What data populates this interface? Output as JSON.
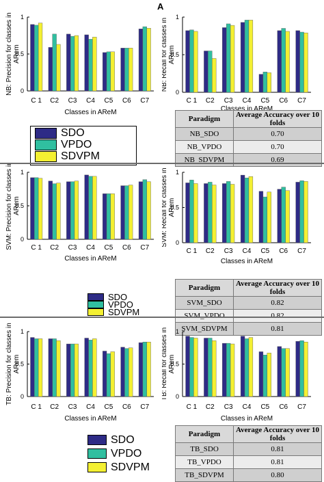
{
  "figure_label": "A",
  "colors": {
    "SDO": "#2e2b86",
    "VPDO": "#30bfa0",
    "SDVPM": "#f4f032"
  },
  "legend": [
    "SDO",
    "VPDO",
    "SDVPM"
  ],
  "panels": [
    {
      "table": {
        "headers": [
          "Paradigm",
          "Average Accuracy over 10 folds"
        ],
        "rows": [
          [
            "NB_SDO",
            "0.70"
          ],
          [
            "NB_VPDO",
            "0.70"
          ],
          [
            "NB_SDVPM",
            "0.69"
          ]
        ]
      }
    },
    {
      "table": {
        "headers": [
          "Paradigm",
          "Average Accuracy over 10 folds"
        ],
        "rows": [
          [
            "SVM_SDO",
            "0.82"
          ],
          [
            "SVM_VPDO",
            "0.82"
          ],
          [
            "SVM_SDVPM",
            "0.81"
          ]
        ]
      }
    },
    {
      "table": {
        "headers": [
          "Paradigm",
          "Average Accuracy over 10 folds"
        ],
        "rows": [
          [
            "TB_SDO",
            "0.81"
          ],
          [
            "TB_VPDO",
            "0.81"
          ],
          [
            "TB_SDVPM",
            "0.80"
          ]
        ]
      }
    }
  ],
  "chart_data": [
    {
      "type": "bar",
      "categories": [
        "C 1",
        "C2",
        "C3",
        "C4",
        "C5",
        "C6",
        "C7"
      ],
      "ylim": [
        0,
        1
      ],
      "yticks": [
        "0",
        "0.5",
        "1"
      ],
      "ylabel": "NB: Precision for classes in ARem",
      "xlabel": "Classes in AReM",
      "series": [
        {
          "name": "SDO",
          "values": [
            0.9,
            0.59,
            0.77,
            0.76,
            0.52,
            0.58,
            0.84
          ]
        },
        {
          "name": "VPDO",
          "values": [
            0.89,
            0.77,
            0.74,
            0.7,
            0.53,
            0.58,
            0.87
          ]
        },
        {
          "name": "SDVPM",
          "values": [
            0.92,
            0.63,
            0.75,
            0.73,
            0.53,
            0.58,
            0.85
          ]
        }
      ]
    },
    {
      "type": "bar",
      "categories": [
        "C 1",
        "C2",
        "C3",
        "C4",
        "C5",
        "C6",
        "C7"
      ],
      "ylim": [
        0,
        1
      ],
      "yticks": [
        "0",
        "0.5",
        "1"
      ],
      "ylabel": "NB: Recall for classes in ARem",
      "xlabel": "Classes in AReM",
      "series": [
        {
          "name": "SDO",
          "values": [
            0.82,
            0.55,
            0.86,
            0.93,
            0.24,
            0.82,
            0.82
          ]
        },
        {
          "name": "VPDO",
          "values": [
            0.83,
            0.55,
            0.91,
            0.96,
            0.27,
            0.85,
            0.8
          ]
        },
        {
          "name": "SDVPM",
          "values": [
            0.81,
            0.45,
            0.89,
            0.96,
            0.26,
            0.81,
            0.79
          ]
        }
      ]
    },
    {
      "type": "bar",
      "categories": [
        "C 1",
        "C2",
        "C3",
        "C4",
        "C5",
        "C6",
        "C7"
      ],
      "ylim": [
        0,
        1
      ],
      "yticks": [
        "0",
        "0.5",
        "1"
      ],
      "ylabel": "SVM: Precision for classes in ARem",
      "xlabel": "Classes in AReM",
      "series": [
        {
          "name": "SDO",
          "values": [
            0.92,
            0.87,
            0.86,
            0.96,
            0.68,
            0.8,
            0.86
          ]
        },
        {
          "name": "VPDO",
          "values": [
            0.92,
            0.83,
            0.86,
            0.94,
            0.68,
            0.8,
            0.89
          ]
        },
        {
          "name": "SDVPM",
          "values": [
            0.91,
            0.84,
            0.87,
            0.94,
            0.68,
            0.81,
            0.86
          ]
        }
      ]
    },
    {
      "type": "bar",
      "categories": [
        "C 1",
        "C2",
        "C3",
        "C4",
        "C5",
        "C6",
        "C7"
      ],
      "ylim": [
        0,
        1
      ],
      "yticks": [
        "0",
        "0.5",
        "1"
      ],
      "ylabel": "SVM: Recall for classes in ARem",
      "xlabel": "Classes in AReM",
      "series": [
        {
          "name": "SDO",
          "values": [
            0.85,
            0.84,
            0.84,
            0.96,
            0.73,
            0.76,
            0.86
          ]
        },
        {
          "name": "VPDO",
          "values": [
            0.89,
            0.86,
            0.87,
            0.92,
            0.65,
            0.79,
            0.88
          ]
        },
        {
          "name": "SDVPM",
          "values": [
            0.84,
            0.82,
            0.83,
            0.94,
            0.72,
            0.74,
            0.87
          ]
        }
      ]
    },
    {
      "type": "bar",
      "categories": [
        "C 1",
        "C2",
        "C3",
        "C4",
        "C5",
        "C6",
        "C7"
      ],
      "ylim": [
        0,
        1
      ],
      "yticks": [
        "0",
        "0.5",
        "1"
      ],
      "ylabel": "TB: Precision for classes in ARem",
      "xlabel": "Classes in AReM",
      "series": [
        {
          "name": "SDO",
          "values": [
            0.91,
            0.89,
            0.81,
            0.9,
            0.7,
            0.76,
            0.83
          ]
        },
        {
          "name": "VPDO",
          "values": [
            0.89,
            0.89,
            0.81,
            0.87,
            0.66,
            0.74,
            0.84
          ]
        },
        {
          "name": "SDVPM",
          "values": [
            0.89,
            0.86,
            0.81,
            0.89,
            0.69,
            0.75,
            0.84
          ]
        }
      ]
    },
    {
      "type": "bar",
      "categories": [
        "C 1",
        "C2",
        "C3",
        "C4",
        "C5",
        "C6",
        "C7"
      ],
      "ylim": [
        0,
        1
      ],
      "yticks": [
        "0",
        "0.5",
        "1"
      ],
      "ylabel": "TB: Recall for classes in ARem",
      "xlabel": "Classes in AReM",
      "series": [
        {
          "name": "SDO",
          "values": [
            0.93,
            0.9,
            0.82,
            0.93,
            0.69,
            0.77,
            0.85
          ]
        },
        {
          "name": "VPDO",
          "values": [
            0.91,
            0.9,
            0.82,
            0.89,
            0.64,
            0.74,
            0.86
          ]
        },
        {
          "name": "SDVPM",
          "values": [
            0.9,
            0.86,
            0.81,
            0.91,
            0.67,
            0.74,
            0.84
          ]
        }
      ]
    }
  ]
}
